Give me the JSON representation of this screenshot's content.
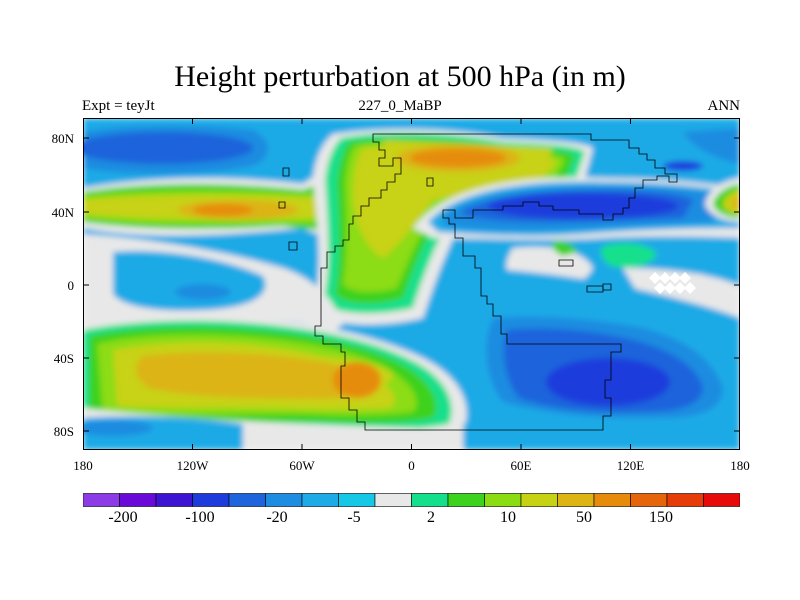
{
  "title": "Height perturbation at 500 hPa (in m)",
  "subtitle_left": "Expt = teyJt",
  "subtitle_center": "227_0_MaBP",
  "subtitle_right": "ANN",
  "map": {
    "lon_ticks": [
      "180",
      "120W",
      "60W",
      "0",
      "60E",
      "120E",
      "180"
    ],
    "lat_ticks": [
      "80N",
      "40N",
      "0",
      "40S",
      "80S"
    ],
    "lon_range": [
      -180,
      180
    ],
    "lat_range": [
      -90,
      90
    ]
  },
  "colorbar": {
    "colors": [
      "#8c3ce6",
      "#6a0ad8",
      "#3c14d2",
      "#1e3cdc",
      "#1e64dc",
      "#1e8ce0",
      "#1eaae6",
      "#14c8e6",
      "#e8e8e8",
      "#14e08c",
      "#3cd21e",
      "#8cdc14",
      "#c8d214",
      "#dcb414",
      "#e68c0a",
      "#e6640a",
      "#e63c0a",
      "#e60a0a"
    ],
    "labels": [
      "-200",
      "-100",
      "-20",
      "-5",
      "2",
      "10",
      "50",
      "150"
    ]
  },
  "colors": {
    "background": "#1eaae6",
    "outline": "#000000"
  }
}
